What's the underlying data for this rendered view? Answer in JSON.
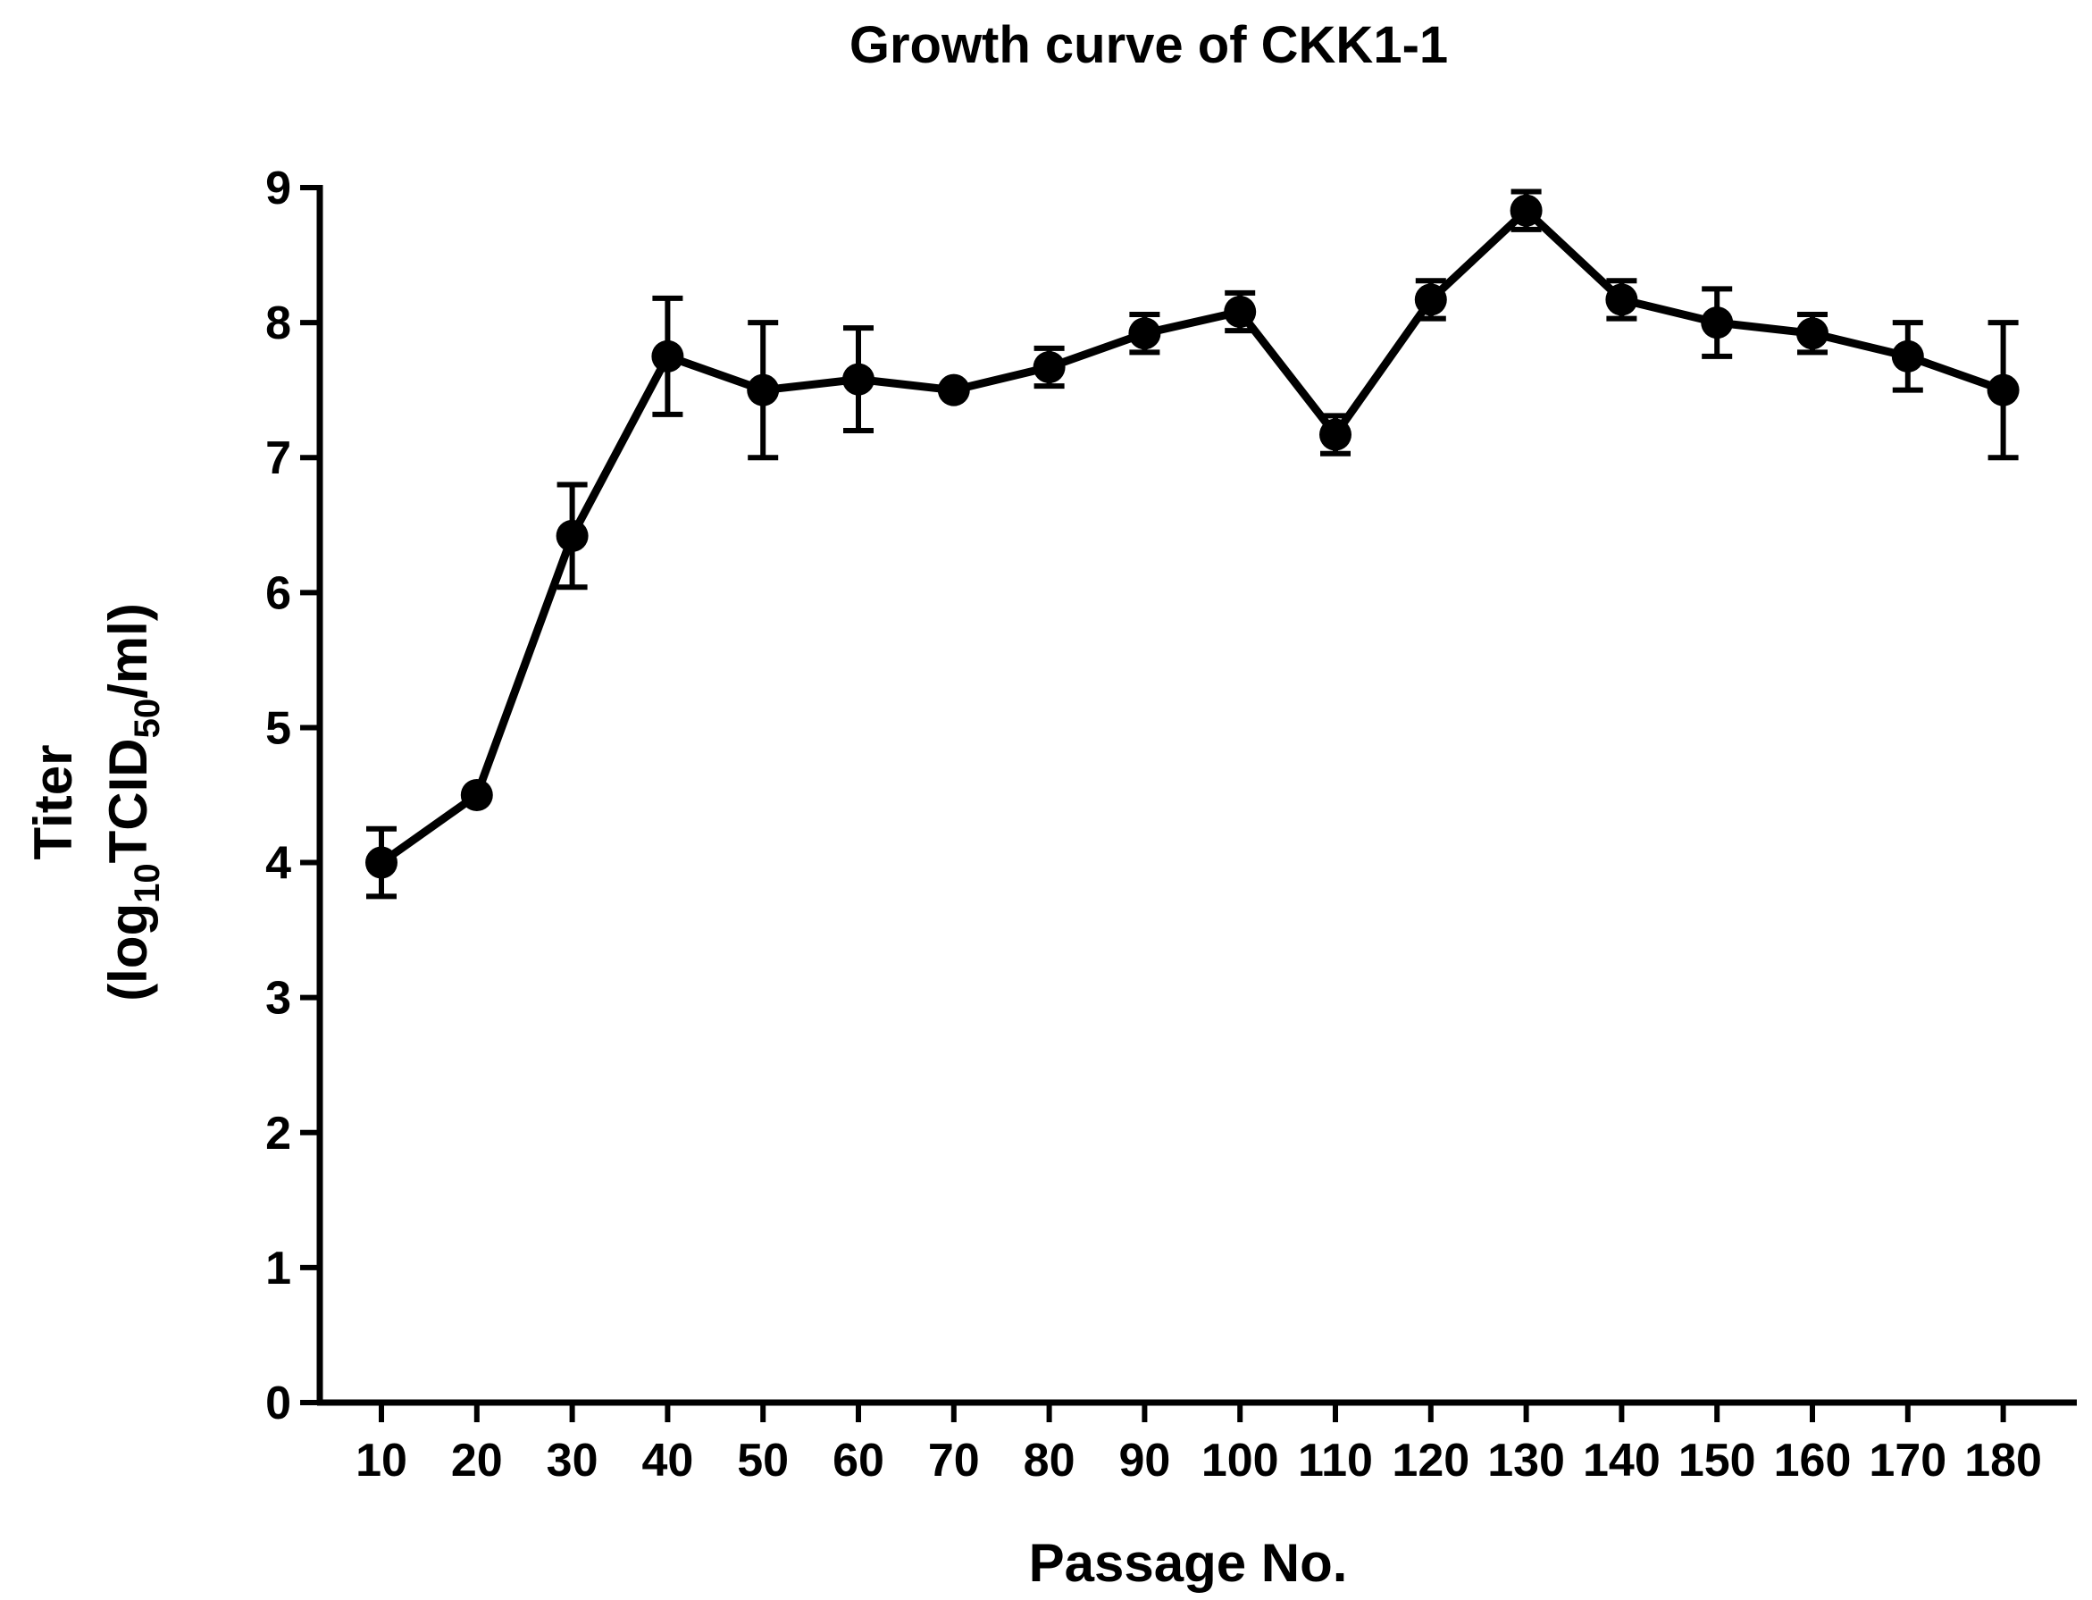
{
  "chart_data": {
    "type": "line",
    "title": "Growth curve of CKK1-1",
    "xlabel": "Passage No.",
    "ylabel_line1": "Titer",
    "ylabel_line2": {
      "open": "(log",
      "sub1": "10",
      "mid": "TCID",
      "sub2": "50",
      "close": "/ml)"
    },
    "x": [
      10,
      20,
      30,
      40,
      50,
      60,
      70,
      80,
      90,
      100,
      110,
      120,
      130,
      140,
      150,
      160,
      170,
      180
    ],
    "x_tick_labels": [
      "10",
      "20",
      "30",
      "40",
      "50",
      "60",
      "70",
      "80",
      "90",
      "100",
      "110",
      "120",
      "130",
      "140",
      "150",
      "160",
      "170",
      "180"
    ],
    "y_ticks": [
      0,
      1,
      2,
      3,
      4,
      5,
      6,
      7,
      8,
      9
    ],
    "ylim": [
      0,
      9
    ],
    "grid": false,
    "series": [
      {
        "name": "CKK1-1",
        "values": [
          4.0,
          4.5,
          6.42,
          7.75,
          7.5,
          7.58,
          7.5,
          7.67,
          7.92,
          8.08,
          7.17,
          8.17,
          8.83,
          8.17,
          8.0,
          7.92,
          7.75,
          7.5
        ],
        "error": [
          0.25,
          0.0,
          0.38,
          0.43,
          0.5,
          0.38,
          0.0,
          0.14,
          0.14,
          0.14,
          0.14,
          0.14,
          0.14,
          0.14,
          0.25,
          0.14,
          0.25,
          0.5
        ]
      }
    ],
    "colors": {
      "line": "#000000",
      "marker": "#000000"
    }
  }
}
